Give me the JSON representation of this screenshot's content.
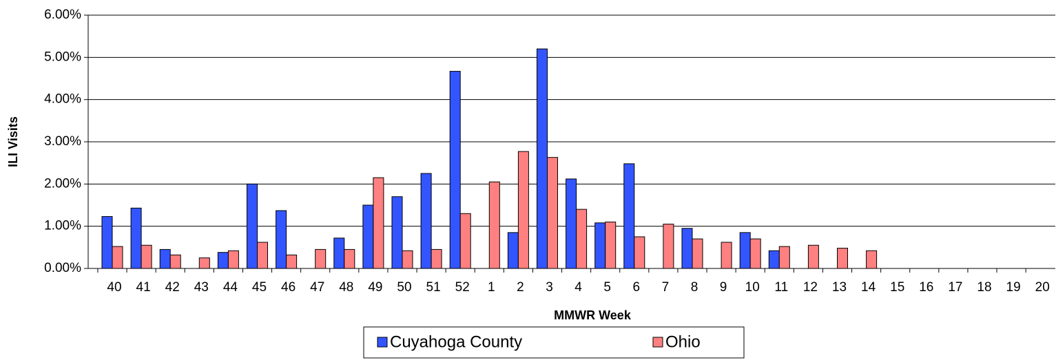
{
  "chart_data": {
    "type": "bar",
    "x_label": "MMWR Week",
    "y_label": "ILI Visits",
    "categories": [
      "40",
      "41",
      "42",
      "43",
      "44",
      "45",
      "46",
      "47",
      "48",
      "49",
      "50",
      "51",
      "52",
      "1",
      "2",
      "3",
      "4",
      "5",
      "6",
      "7",
      "8",
      "9",
      "10",
      "11",
      "12",
      "13",
      "14",
      "15",
      "16",
      "17",
      "18",
      "19",
      "20"
    ],
    "series": [
      {
        "name": "Cuyahoga County",
        "color": "#3355ff",
        "values": [
          1.23,
          1.43,
          0.45,
          null,
          0.38,
          2.0,
          1.37,
          null,
          0.72,
          1.5,
          1.7,
          2.25,
          4.67,
          null,
          0.85,
          5.2,
          2.12,
          1.08,
          2.48,
          null,
          0.95,
          null,
          0.85,
          0.42,
          null,
          null,
          null,
          null,
          null,
          null,
          null,
          null,
          null
        ]
      },
      {
        "name": "Ohio",
        "color": "#ff8080",
        "values": [
          0.52,
          0.55,
          0.32,
          0.25,
          0.42,
          0.62,
          0.32,
          0.45,
          0.45,
          2.15,
          0.42,
          0.45,
          1.3,
          2.05,
          2.77,
          2.63,
          1.4,
          1.1,
          0.75,
          1.05,
          0.7,
          0.62,
          0.7,
          0.52,
          0.55,
          0.48,
          0.42,
          null,
          null,
          null,
          null,
          null,
          null
        ]
      }
    ],
    "ylim": [
      0,
      6
    ],
    "yticks": [
      {
        "value": 0,
        "label": "0.00%"
      },
      {
        "value": 1,
        "label": "1.00%"
      },
      {
        "value": 2,
        "label": "2.00%"
      },
      {
        "value": 3,
        "label": "3.00%"
      },
      {
        "value": 4,
        "label": "4.00%"
      },
      {
        "value": 5,
        "label": "5.00%"
      },
      {
        "value": 6,
        "label": "6.00%"
      }
    ],
    "grid": true,
    "legend": "bottom"
  }
}
